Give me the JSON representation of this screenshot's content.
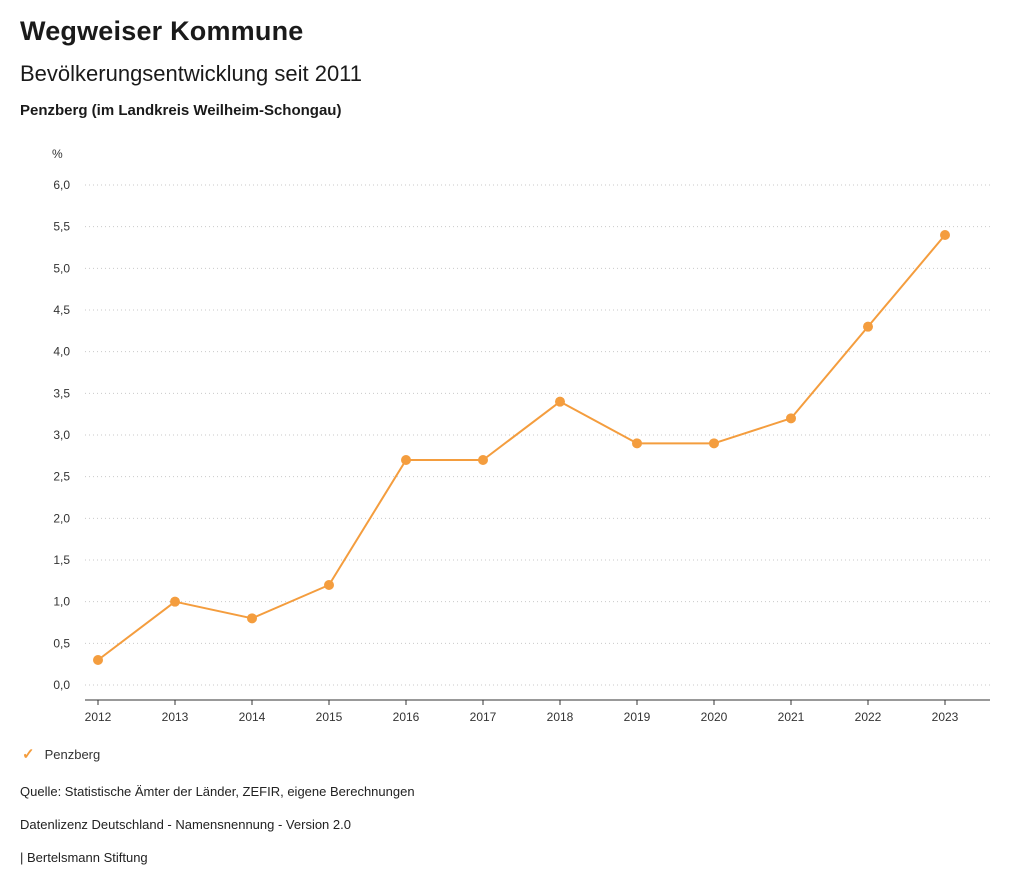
{
  "header": {
    "title": "Wegweiser Kommune"
  },
  "chart_data": {
    "type": "line",
    "title": "Bevölkerungsentwicklung seit 2011",
    "subtitle": "Penzberg (im Landkreis Weilheim-Schongau)",
    "unit_label": "%",
    "xlabel": "",
    "ylabel": "%",
    "x": [
      2012,
      2013,
      2014,
      2015,
      2016,
      2017,
      2018,
      2019,
      2020,
      2021,
      2022,
      2023
    ],
    "series": [
      {
        "name": "Penzberg",
        "color": "#F49D3E",
        "values": [
          0.3,
          1.0,
          0.8,
          1.2,
          2.7,
          2.7,
          3.4,
          2.9,
          2.9,
          3.2,
          4.3,
          5.4
        ]
      }
    ],
    "ylim": [
      0.0,
      6.0
    ],
    "ytick_step": 0.5,
    "decimal_separator": ",",
    "grid": "horizontal-dotted",
    "legend_position": "bottom-left"
  },
  "legend": {
    "check_glyph": "✓"
  },
  "footer": {
    "source": "Quelle: Statistische Ämter der Länder, ZEFIR, eigene Berechnungen",
    "license": "Datenlizenz Deutschland - Namensnennung - Version 2.0",
    "attribution": "| Bertelsmann Stiftung"
  }
}
